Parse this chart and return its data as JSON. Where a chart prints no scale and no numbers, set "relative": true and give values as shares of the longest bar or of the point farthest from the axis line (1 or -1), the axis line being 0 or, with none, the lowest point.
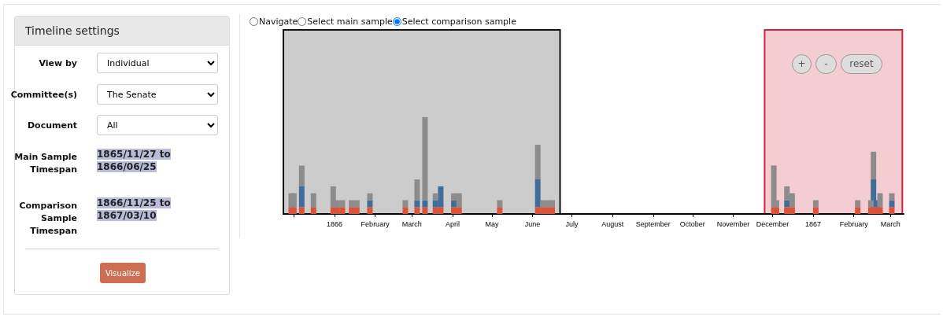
{
  "chart_data": [
    {
      "type": "other",
      "annotations": [
        "Timeline settings",
        "View by",
        "Individual",
        "Committee(s)",
        "The Senate",
        "Document",
        "All",
        "Main Sample Timespan",
        "1865/11/27 to 1866/06/25",
        "Comparison Sample Timespan",
        "1866/11/25 to 1867/03/10",
        "Visualize"
      ]
    },
    {
      "type": "bar",
      "stacked": true,
      "relative": true,
      "grid": false,
      "tick_labels": "x",
      "annotations": [
        "Navigate",
        "Select main sample",
        "Select comparison sample",
        "+",
        "-",
        "reset"
      ],
      "x": [
        "1865-11-29",
        "1865-12-01",
        "1865-12-07",
        "1865-12-16",
        "1865-12-31",
        "1866-01-03",
        "1866-01-07",
        "1866-01-14",
        "1866-01-18",
        "1866-01-28",
        "1866-02-24",
        "1866-03-05",
        "1866-03-11",
        "1866-03-19",
        "1866-03-23",
        "1866-04-02",
        "1866-04-06",
        "1866-05-07",
        "1866-06-05",
        "1866-06-09",
        "1866-06-13",
        "1866-06-16",
        "1866-12-02",
        "1866-12-04",
        "1866-12-12",
        "1866-12-16",
        "1867-01-03",
        "1867-02-04",
        "1867-02-14",
        "1867-02-16",
        "1867-02-19",
        "1867-02-21",
        "1867-03-02"
      ],
      "xlim": [
        "1865-11-23",
        "1867-03-11"
      ],
      "xticks": [
        {
          "value": "1865-12-01",
          "label": null
        },
        {
          "value": "1866-01-01",
          "label": "1866"
        },
        {
          "value": "1866-02-01",
          "label": "February"
        },
        {
          "value": "1866-03-01",
          "label": "March"
        },
        {
          "value": "1866-04-01",
          "label": "April"
        },
        {
          "value": "1866-05-01",
          "label": "May"
        },
        {
          "value": "1866-06-01",
          "label": "June"
        },
        {
          "value": "1866-07-01",
          "label": "July"
        },
        {
          "value": "1866-08-01",
          "label": "August"
        },
        {
          "value": "1866-09-01",
          "label": "September"
        },
        {
          "value": "1866-10-01",
          "label": "October"
        },
        {
          "value": "1866-11-01",
          "label": "November"
        },
        {
          "value": "1866-12-01",
          "label": "December"
        },
        {
          "value": "1867-01-01",
          "label": "1867"
        },
        {
          "value": "1867-02-01",
          "label": "February"
        },
        {
          "value": "1867-03-01",
          "label": "March"
        }
      ],
      "bands": [
        {
          "axis": "x",
          "from": "1865-11-23",
          "to": "1866-06-22",
          "color": "#cccccc"
        },
        {
          "axis": "x",
          "from": "1866-11-25",
          "to": "1867-03-10",
          "color": "#f4cdd3"
        }
      ],
      "series": [
        {
          "color": "#d9533b",
          "values": [
            0.071,
            0.071,
            0.071,
            0.071,
            0.071,
            0.071,
            0.071,
            0.071,
            0.071,
            0.071,
            0.071,
            0.071,
            0.071,
            0.071,
            0.071,
            0.071,
            0.071,
            0.071,
            0.071,
            0.071,
            0.071,
            0.071,
            0.071,
            0.071,
            0.071,
            0.071,
            0.071,
            0.071,
            0.071,
            0.071,
            0.071,
            0.071,
            0.071
          ]
        },
        {
          "color": "#3f6e9a",
          "values": [
            0,
            0,
            0.214,
            0,
            0,
            0,
            0,
            0,
            0,
            0.071,
            0,
            0.071,
            0.071,
            0.071,
            0.214,
            0.071,
            0,
            0,
            0.286,
            0,
            0,
            0,
            0,
            0,
            0.071,
            0,
            0,
            0,
            0,
            0.286,
            0.071,
            0,
            0.071
          ]
        },
        {
          "color": "#8c8c8c",
          "values": [
            0.143,
            0.143,
            0.214,
            0.143,
            0.214,
            0.071,
            0.071,
            0.071,
            0.071,
            0.071,
            0.071,
            0.214,
            0.858,
            0.071,
            0,
            0.071,
            0.143,
            0.071,
            0.357,
            0.071,
            0.071,
            0.071,
            0.429,
            0.071,
            0.143,
            0.143,
            0.071,
            0.071,
            0.071,
            0.286,
            0,
            0.143,
            0.071
          ]
        }
      ]
    }
  ]
}
